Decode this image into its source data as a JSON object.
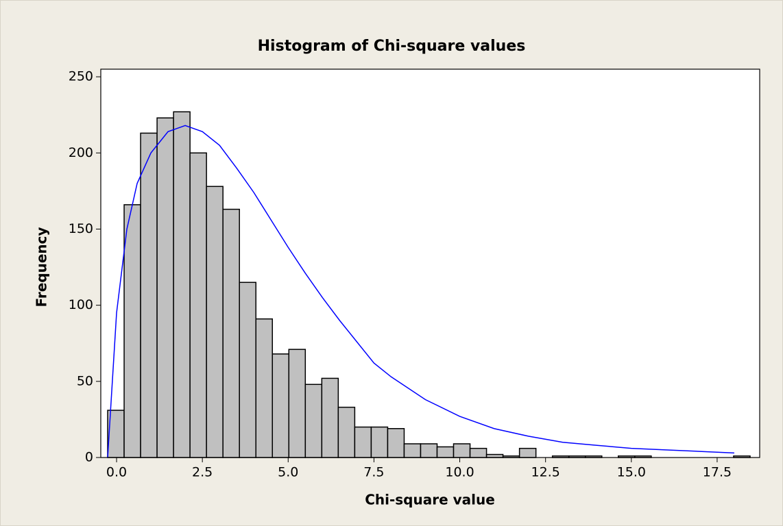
{
  "chart_data": {
    "type": "histogram",
    "title": "Histogram of Chi-square values",
    "xlabel": "Chi-square value",
    "ylabel": "Frequency",
    "bins": [
      -0.26,
      0.22,
      0.7,
      1.18,
      1.66,
      2.14,
      2.62,
      3.1,
      3.58,
      4.06,
      4.54,
      5.02,
      5.5,
      5.98,
      6.46,
      6.94,
      7.42,
      7.9,
      8.38,
      8.86,
      9.34,
      9.82,
      10.3,
      10.78,
      11.26,
      11.74,
      12.22,
      12.7,
      13.18,
      13.66,
      14.14,
      14.62,
      15.1,
      15.58,
      16.06,
      16.54,
      17.02,
      17.5,
      17.98,
      18.46
    ],
    "counts": [
      31,
      166,
      213,
      223,
      227,
      200,
      178,
      163,
      115,
      91,
      68,
      71,
      48,
      52,
      33,
      20,
      20,
      19,
      9,
      9,
      7,
      9,
      6,
      2,
      1,
      6,
      0,
      1,
      1,
      1,
      0,
      1,
      1,
      0,
      0,
      0,
      0,
      0,
      1
    ],
    "color": "#c0c0c0",
    "edgecolor": "#000000",
    "curve": {
      "color": "#0000ff",
      "x": [
        -0.26,
        0,
        0.3,
        0.6,
        1,
        1.5,
        2,
        2.5,
        3,
        3.5,
        4,
        4.5,
        5,
        5.5,
        6,
        6.5,
        7,
        7.5,
        8,
        9,
        10,
        11,
        12,
        13,
        14,
        15,
        16,
        17,
        18
      ],
      "y": [
        0,
        95,
        150,
        180,
        200,
        214,
        218,
        214,
        205,
        190,
        174,
        156,
        138,
        121,
        105,
        90,
        76,
        62,
        53,
        38,
        27,
        19,
        14,
        10,
        8,
        6,
        5,
        4,
        3
      ]
    },
    "xlim": [
      -0.46,
      18.74
    ],
    "ylim": [
      0,
      255
    ],
    "xticks": [
      {
        "value": 0,
        "label": "0.0"
      },
      2.5,
      {
        "value": 5,
        "label": "5.0"
      },
      7.5,
      {
        "value": 10,
        "label": "10.0"
      },
      12.5,
      {
        "value": 15,
        "label": "15.0"
      },
      17.5
    ],
    "yticks": [
      0,
      50,
      100,
      150,
      200,
      250
    ],
    "grid": false
  }
}
